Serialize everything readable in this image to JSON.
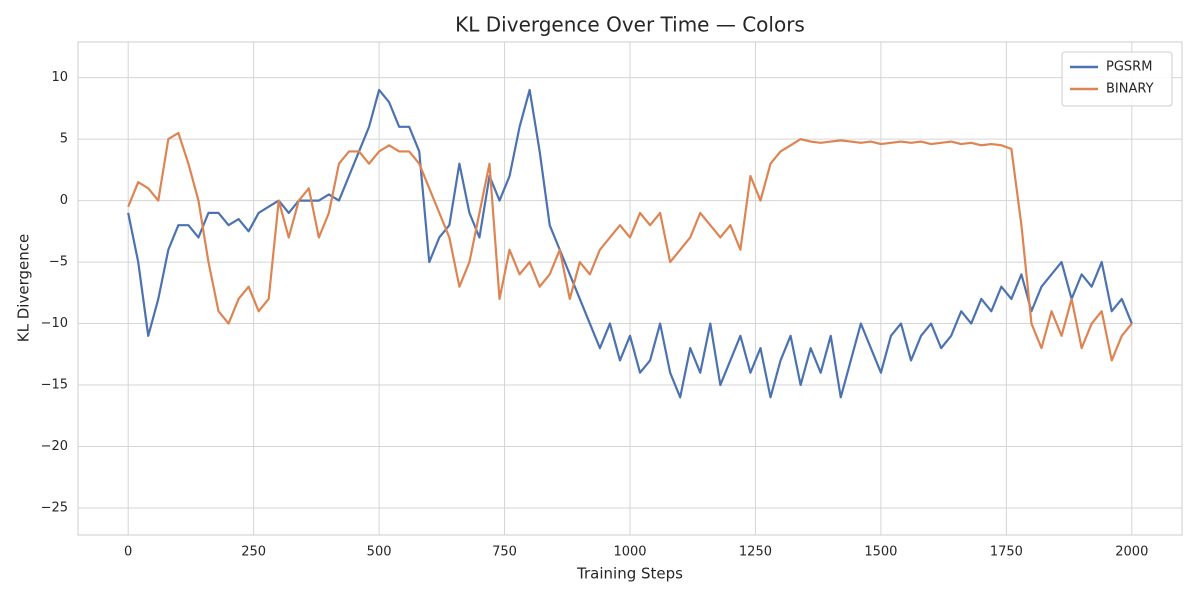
{
  "chart_data": {
    "type": "line",
    "title": "KL Divergence Over Time — Colors",
    "xlabel": "Training Steps",
    "ylabel": "KL Divergence",
    "x": [
      0,
      20,
      40,
      60,
      80,
      100,
      120,
      140,
      160,
      180,
      200,
      220,
      240,
      260,
      280,
      300,
      320,
      340,
      360,
      380,
      400,
      420,
      440,
      460,
      480,
      500,
      520,
      540,
      560,
      580,
      600,
      620,
      640,
      660,
      680,
      700,
      720,
      740,
      760,
      780,
      800,
      820,
      840,
      860,
      880,
      900,
      920,
      940,
      960,
      980,
      1000,
      1020,
      1040,
      1060,
      1080,
      1100,
      1120,
      1140,
      1160,
      1180,
      1200,
      1220,
      1240,
      1260,
      1280,
      1300,
      1320,
      1340,
      1360,
      1380,
      1400,
      1420,
      1440,
      1460,
      1480,
      1500,
      1520,
      1540,
      1560,
      1580,
      1600,
      1620,
      1640,
      1660,
      1680,
      1700,
      1720,
      1740,
      1760,
      1780,
      1800,
      1820,
      1840,
      1860,
      1880,
      1900,
      1920,
      1940,
      1960,
      1980,
      2000
    ],
    "series": [
      {
        "name": "PGSRM",
        "color": "#4c72b0",
        "values": [
          -1,
          -5,
          -11,
          -8,
          -4,
          -2,
          -2,
          -3,
          -1,
          -1,
          -2,
          -1.5,
          -2.5,
          -1,
          -0.5,
          0,
          -1,
          0,
          0,
          0,
          0.5,
          0,
          2,
          4,
          6,
          9,
          8,
          6,
          6,
          4,
          -5,
          -3,
          -2,
          3,
          -1,
          -3,
          2,
          0,
          2,
          6,
          9,
          4,
          -2,
          -4,
          -6,
          -8,
          -10,
          -12,
          -10,
          -13,
          -11,
          -14,
          -13,
          -10,
          -14,
          -16,
          -12,
          -14,
          -10,
          -15,
          -13,
          -11,
          -14,
          -12,
          -16,
          -13,
          -11,
          -15,
          -12,
          -14,
          -11,
          -16,
          -13,
          -10,
          -12,
          -14,
          -11,
          -10,
          -13,
          -11,
          -10,
          -12,
          -11,
          -9,
          -10,
          -8,
          -9,
          -7,
          -8,
          -6,
          -9,
          -7,
          -6,
          -5,
          -8,
          -6,
          -7,
          -5,
          -9,
          -8,
          -10
        ]
      },
      {
        "name": "BINARY",
        "color": "#dd8452",
        "values": [
          -0.5,
          1.5,
          1,
          0,
          5,
          5.5,
          3,
          0,
          -5,
          -9,
          -10,
          -8,
          -7,
          -9,
          -8,
          0,
          -3,
          0,
          1,
          -3,
          -1,
          3,
          4,
          4,
          3,
          4,
          4.5,
          4,
          4,
          3,
          1,
          -1,
          -3,
          -7,
          -5,
          -1,
          3,
          -8,
          -4,
          -6,
          -5,
          -7,
          -6,
          -4,
          -8,
          -5,
          -6,
          -4,
          -3,
          -2,
          -3,
          -1,
          -2,
          -1,
          -5,
          -4,
          -3,
          -1,
          -2,
          -3,
          -2,
          -4,
          2,
          0,
          3,
          4,
          4.5,
          5,
          4.8,
          4.7,
          4.8,
          4.9,
          4.8,
          4.7,
          4.8,
          4.6,
          4.7,
          4.8,
          4.7,
          4.8,
          4.6,
          4.7,
          4.8,
          4.6,
          4.7,
          4.5,
          4.6,
          4.5,
          4.2,
          -2,
          -10,
          -12,
          -9,
          -11,
          -8,
          -12,
          -10,
          -9,
          -13,
          -11,
          -10
        ]
      }
    ],
    "xlim": [
      -100,
      2100
    ],
    "ylim": [
      -27.2,
      12.9
    ],
    "xticks": [
      0,
      250,
      500,
      750,
      1000,
      1250,
      1500,
      1750,
      2000
    ],
    "yticks": [
      {
        "value": -25,
        "label": "−25"
      },
      {
        "value": -20,
        "label": "−20"
      },
      {
        "value": -15,
        "label": "−15"
      },
      {
        "value": -10,
        "label": "−10"
      },
      {
        "value": -5,
        "label": "−5"
      },
      0,
      5,
      10
    ],
    "grid": true,
    "legend": "upper right"
  }
}
